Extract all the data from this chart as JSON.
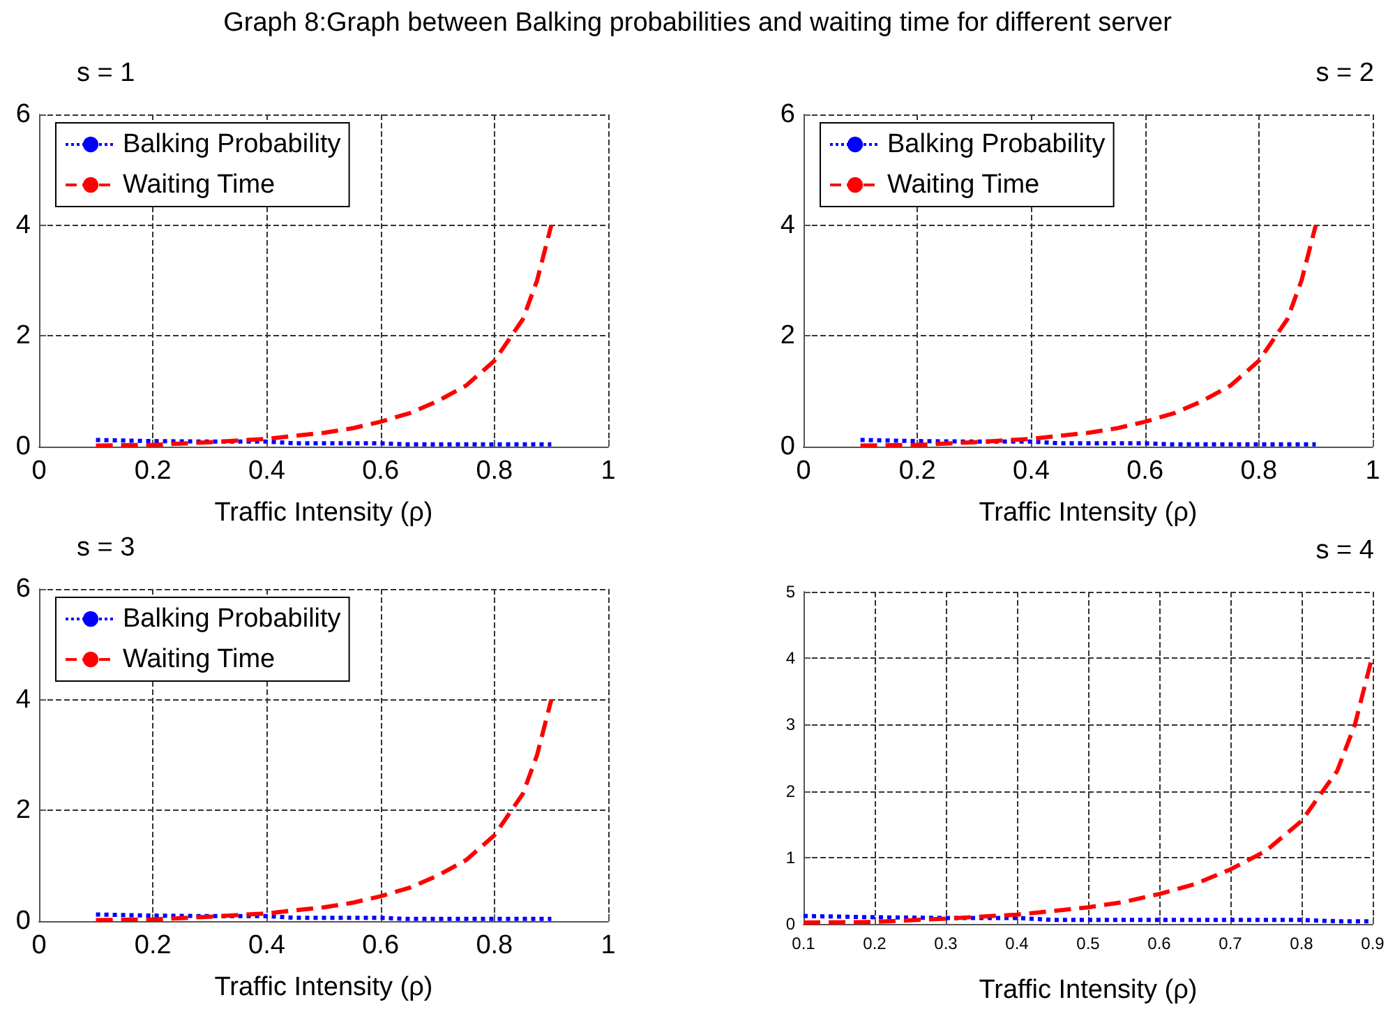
{
  "chart_data": [
    {
      "type": "line",
      "title": "Graph 8:Graph between Balking probabilities and waiting time for different server",
      "subtitle": "s = 1",
      "xlabel": "Traffic Intensity (ρ)",
      "xlim": [
        0,
        1
      ],
      "xticks": [
        0,
        0.2,
        0.4,
        0.6,
        0.8,
        1
      ],
      "ylim": [
        0,
        6
      ],
      "yticks": [
        0,
        2,
        4,
        6
      ],
      "grid": true,
      "legend": "top left",
      "marker": "none",
      "series": [
        {
          "name": "Balking Probability",
          "color": "#0000ff",
          "line_style": "dotted",
          "x": [
            0.1,
            0.2,
            0.3,
            0.4,
            0.45,
            0.5,
            0.6,
            0.65,
            0.7,
            0.8,
            0.85,
            0.9
          ],
          "values": [
            0.12,
            0.1,
            0.09,
            0.09,
            0.06,
            0.06,
            0.06,
            0.04,
            0.04,
            0.04,
            0.04,
            0.04
          ]
        },
        {
          "name": "Waiting Time",
          "color": "#ff0000",
          "line_style": "dashed",
          "x": [
            0.1,
            0.2,
            0.3,
            0.4,
            0.5,
            0.55,
            0.6,
            0.65,
            0.7,
            0.75,
            0.8,
            0.85,
            0.875,
            0.9
          ],
          "values": [
            0.02,
            0.03,
            0.08,
            0.14,
            0.25,
            0.33,
            0.45,
            0.6,
            0.82,
            1.1,
            1.55,
            2.3,
            3.0,
            4.0
          ]
        }
      ]
    },
    {
      "type": "line",
      "title": "s = 2",
      "xlabel": "Traffic Intensity (ρ)",
      "xlim": [
        0,
        1
      ],
      "xticks": [
        0,
        0.2,
        0.4,
        0.6,
        0.8,
        1
      ],
      "ylim": [
        0,
        6
      ],
      "yticks": [
        0,
        2,
        4,
        6
      ],
      "grid": true,
      "legend": "top left",
      "marker": "none",
      "series": [
        {
          "name": "Balking Probability",
          "color": "#0000ff",
          "line_style": "dotted",
          "x": [
            0.1,
            0.2,
            0.3,
            0.4,
            0.45,
            0.5,
            0.6,
            0.65,
            0.7,
            0.8,
            0.85,
            0.9
          ],
          "values": [
            0.12,
            0.1,
            0.09,
            0.09,
            0.06,
            0.06,
            0.06,
            0.04,
            0.04,
            0.04,
            0.04,
            0.04
          ]
        },
        {
          "name": "Waiting Time",
          "color": "#ff0000",
          "line_style": "dashed",
          "x": [
            0.1,
            0.2,
            0.3,
            0.4,
            0.5,
            0.55,
            0.6,
            0.65,
            0.7,
            0.75,
            0.8,
            0.85,
            0.875,
            0.9
          ],
          "values": [
            0.02,
            0.03,
            0.08,
            0.14,
            0.25,
            0.33,
            0.45,
            0.6,
            0.82,
            1.1,
            1.55,
            2.3,
            3.0,
            4.0
          ]
        }
      ]
    },
    {
      "type": "line",
      "title": "s = 3",
      "xlabel": "Traffic Intensity (ρ)",
      "xlim": [
        0,
        1
      ],
      "xticks": [
        0,
        0.2,
        0.4,
        0.6,
        0.8,
        1
      ],
      "ylim": [
        0,
        6
      ],
      "yticks": [
        0,
        2,
        4,
        6
      ],
      "grid": true,
      "legend": "top left",
      "marker": "none",
      "series": [
        {
          "name": "Balking Probability",
          "color": "#0000ff",
          "line_style": "dotted",
          "x": [
            0.1,
            0.2,
            0.3,
            0.4,
            0.45,
            0.5,
            0.6,
            0.65,
            0.7,
            0.8,
            0.85,
            0.9
          ],
          "values": [
            0.12,
            0.1,
            0.09,
            0.09,
            0.06,
            0.06,
            0.06,
            0.04,
            0.04,
            0.04,
            0.04,
            0.04
          ]
        },
        {
          "name": "Waiting Time",
          "color": "#ff0000",
          "line_style": "dashed",
          "x": [
            0.1,
            0.2,
            0.3,
            0.4,
            0.5,
            0.55,
            0.6,
            0.65,
            0.7,
            0.75,
            0.8,
            0.85,
            0.875,
            0.9
          ],
          "values": [
            0.02,
            0.03,
            0.08,
            0.14,
            0.25,
            0.33,
            0.45,
            0.6,
            0.82,
            1.1,
            1.55,
            2.3,
            3.0,
            4.0
          ]
        }
      ]
    },
    {
      "type": "line",
      "title": "s = 4",
      "xlabel": "Traffic Intensity (ρ)",
      "xlim": [
        0.1,
        0.9
      ],
      "xticks": [
        0.1,
        0.2,
        0.3,
        0.4,
        0.5,
        0.6,
        0.7,
        0.8,
        0.9
      ],
      "ylim": [
        0,
        5
      ],
      "yticks": [
        0,
        1,
        2,
        3,
        4,
        5
      ],
      "grid": true,
      "marker": "none",
      "series": [
        {
          "color": "#0000ff",
          "line_style": "dotted",
          "x": [
            0.1,
            0.2,
            0.3,
            0.4,
            0.45,
            0.5,
            0.6,
            0.7,
            0.8,
            0.85,
            0.9
          ],
          "values": [
            0.12,
            0.1,
            0.09,
            0.09,
            0.06,
            0.06,
            0.06,
            0.06,
            0.06,
            0.04,
            0.04
          ]
        },
        {
          "color": "#ff0000",
          "line_style": "dashed",
          "x": [
            0.1,
            0.2,
            0.3,
            0.4,
            0.5,
            0.55,
            0.6,
            0.65,
            0.7,
            0.75,
            0.8,
            0.85,
            0.875,
            0.9
          ],
          "values": [
            0.02,
            0.03,
            0.08,
            0.14,
            0.25,
            0.33,
            0.45,
            0.6,
            0.82,
            1.1,
            1.55,
            2.3,
            3.0,
            4.05
          ]
        }
      ]
    }
  ]
}
